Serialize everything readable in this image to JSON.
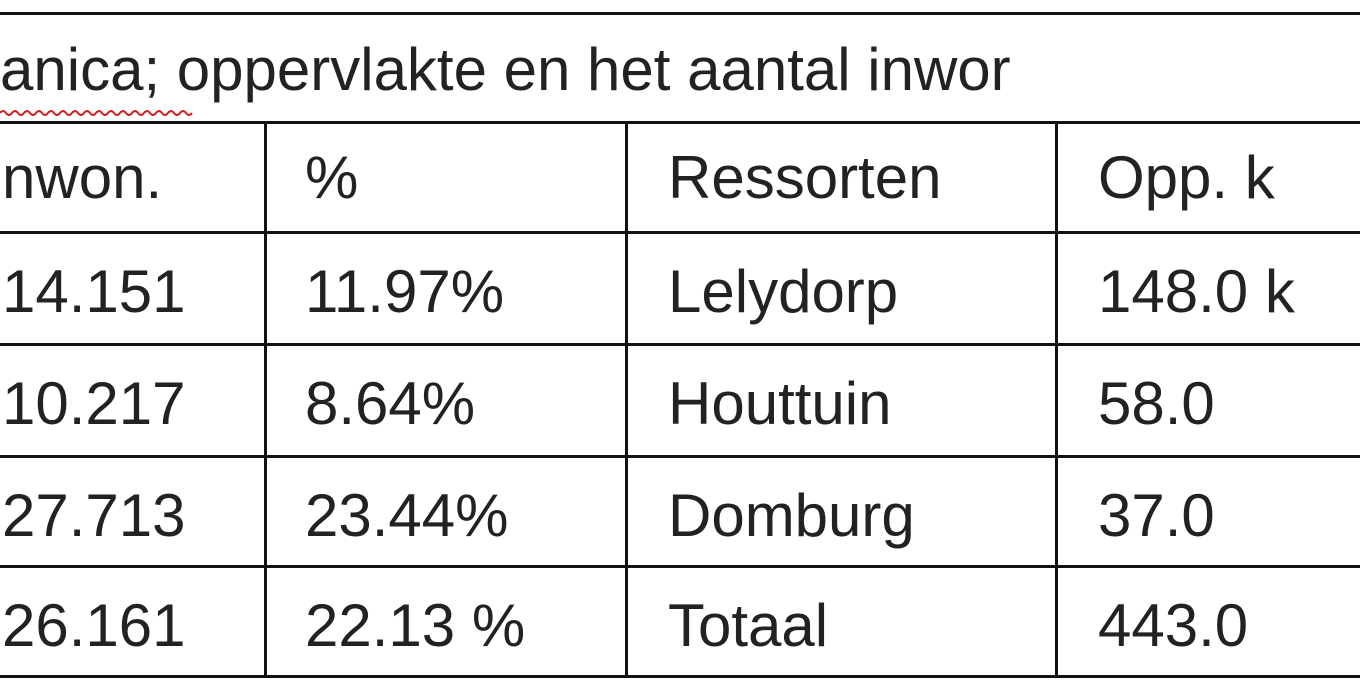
{
  "title": "anica; oppervlakte en het aantal inwor",
  "table": {
    "header": [
      "nwon.",
      "%",
      "Ressorten",
      "Opp. k"
    ],
    "rows": [
      [
        "14.151",
        "11.97%",
        "Lelydorp",
        "148.0 k"
      ],
      [
        "10.217",
        "8.64%",
        "Houttuin",
        "58.0"
      ],
      [
        "27.713",
        "23.44%",
        "Domburg",
        "37.0"
      ],
      [
        "26.161",
        "22.13 %",
        "Totaal",
        "443.0"
      ]
    ]
  }
}
